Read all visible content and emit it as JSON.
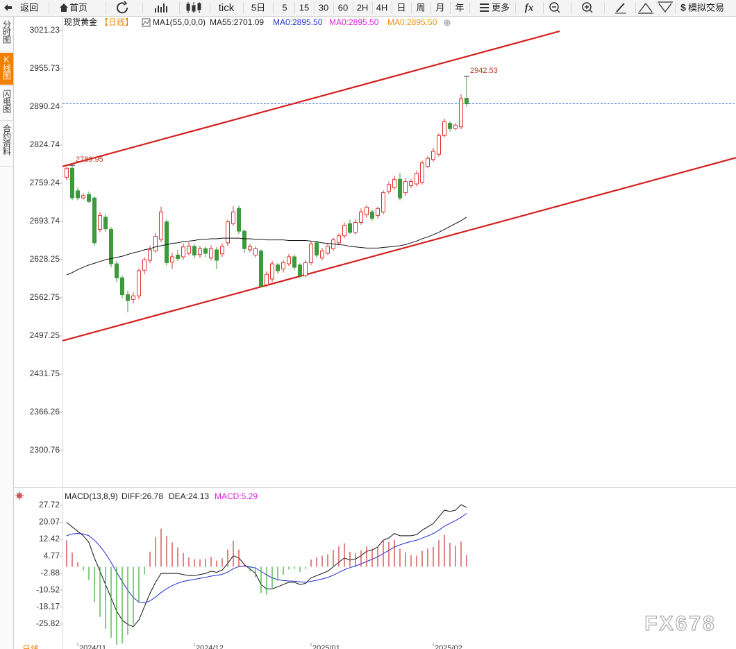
{
  "toolbar": {
    "buttons": [
      "返回",
      "首页",
      "tick",
      "5日",
      "5",
      "15",
      "30",
      "60",
      "2H",
      "4H",
      "日",
      "周",
      "月",
      "年",
      "更多",
      "模拟交易"
    ]
  },
  "sidebar": {
    "tabs": [
      "分时图",
      "K线图",
      "闪电图",
      "合约资料"
    ],
    "active": 1
  },
  "period_tab": "日线",
  "watermark": "FX678",
  "chart_data": [
    {
      "type": "candlestick",
      "title": "现货黄金",
      "legend": [
        {
          "text": "【日线】",
          "color": "#f08000"
        },
        {
          "text": "MA1(55,0,0,0)",
          "color": "#222222"
        },
        {
          "text": "MA55:2701.09",
          "color": "#222222"
        },
        {
          "text": "MA0:2895.50",
          "color": "#2233cc"
        },
        {
          "text": "MA0:2895.50",
          "color": "#dd22dd"
        },
        {
          "text": "MA0:2895.50",
          "color": "#f09010"
        }
      ],
      "categories": [
        null,
        null,
        "2024/11",
        null,
        null,
        null,
        null,
        null,
        null,
        null,
        null,
        null,
        null,
        null,
        null,
        null,
        null,
        null,
        null,
        null,
        null,
        null,
        null,
        "2024/12",
        null,
        null,
        null,
        null,
        null,
        null,
        null,
        null,
        null,
        null,
        null,
        null,
        null,
        null,
        null,
        null,
        null,
        null,
        null,
        null,
        "2025/01",
        null,
        null,
        null,
        null,
        null,
        null,
        null,
        null,
        null,
        null,
        null,
        null,
        null,
        null,
        null,
        null,
        null,
        null,
        null,
        null,
        null,
        "2025/02",
        null,
        null,
        null,
        null,
        null,
        null
      ],
      "open": [
        2769.5,
        2785,
        2746.2,
        2734,
        2740,
        2734,
        2680,
        2701,
        2680,
        2621,
        2597,
        2568,
        2560,
        2566,
        2610,
        2627,
        2643,
        2663,
        2693,
        2624,
        2636,
        2633,
        2639,
        2651,
        2637,
        2647,
        2631,
        2645,
        2638,
        2657,
        2690,
        2716,
        2677,
        2645,
        2636,
        2643,
        2585,
        2595,
        2619,
        2612,
        2621,
        2633,
        2619,
        2601,
        2623,
        2657,
        2631,
        2639,
        2647,
        2657,
        2669,
        2690,
        2675,
        2692,
        2705,
        2710,
        2704,
        2710,
        2745,
        2752,
        2766,
        2743,
        2755,
        2758,
        2761,
        2788,
        2800,
        2809,
        2841,
        2862,
        2853,
        2856,
        2905
      ],
      "high": [
        2787,
        2789.95,
        2752,
        2742,
        2745,
        2737,
        2710,
        2706,
        2684,
        2626,
        2601,
        2575,
        2572,
        2613,
        2632,
        2652,
        2674,
        2719,
        2697,
        2640,
        2645,
        2656,
        2658,
        2655,
        2652,
        2651,
        2653,
        2650,
        2656,
        2697,
        2720,
        2721,
        2680,
        2655,
        2651,
        2646,
        2608,
        2626,
        2622,
        2627,
        2638,
        2637,
        2622,
        2627,
        2660,
        2660,
        2648,
        2655,
        2666,
        2673,
        2692,
        2697,
        2697,
        2716,
        2722,
        2714,
        2719,
        2747,
        2762,
        2772,
        2777,
        2768,
        2766,
        2781,
        2798,
        2806,
        2820,
        2845,
        2870,
        2866,
        2862,
        2912,
        2942.53
      ],
      "low": [
        2765,
        2730,
        2730,
        2731,
        2725,
        2652,
        2675,
        2676,
        2615,
        2590,
        2562,
        2538,
        2553,
        2560,
        2603,
        2622,
        2640,
        2658,
        2618,
        2612,
        2626,
        2628,
        2635,
        2630,
        2631,
        2633,
        2627,
        2612,
        2633,
        2652,
        2686,
        2672,
        2640,
        2641,
        2632,
        2580,
        2581,
        2590,
        2604,
        2606,
        2617,
        2610,
        2597,
        2598,
        2619,
        2631,
        2627,
        2636,
        2643,
        2653,
        2665,
        2672,
        2671,
        2688,
        2700,
        2695,
        2699,
        2706,
        2741,
        2748,
        2730,
        2738,
        2751,
        2754,
        2757,
        2785,
        2796,
        2805,
        2838,
        2848,
        2850,
        2852,
        2890
      ],
      "close": [
        2785,
        2734.3,
        2734.3,
        2738,
        2728,
        2657,
        2704,
        2681,
        2621,
        2597,
        2568,
        2558,
        2566,
        2609,
        2628,
        2645,
        2668,
        2710,
        2623,
        2633,
        2630,
        2650,
        2651,
        2636,
        2647,
        2639,
        2647,
        2627,
        2651,
        2693,
        2710,
        2677,
        2647,
        2651,
        2647,
        2583,
        2603,
        2621,
        2609,
        2623,
        2633,
        2615,
        2601,
        2623,
        2655,
        2636,
        2643,
        2651,
        2662,
        2669,
        2687,
        2675,
        2692,
        2710,
        2718,
        2699,
        2716,
        2743,
        2757,
        2766,
        2734,
        2762,
        2762,
        2776,
        2794,
        2802,
        2814,
        2841,
        2865,
        2853,
        2859,
        2904,
        2895.5
      ],
      "up_color": "#e03030",
      "down_color": "#3c9a3c",
      "series": [
        {
          "name": "MA55",
          "color": "#111111",
          "values": [
            2602,
            2606,
            2611,
            2615,
            2619,
            2622,
            2625,
            2628,
            2630,
            2632,
            2634,
            2637,
            2640,
            2642,
            2645,
            2647,
            2650,
            2652,
            2654,
            2656,
            2657,
            2659,
            2660,
            2661,
            2663,
            2663,
            2664,
            2664,
            2665,
            2665,
            2665,
            2665,
            2664,
            2664,
            2663,
            2663,
            2662,
            2662,
            2662,
            2662,
            2661,
            2661,
            2661,
            2661,
            2660,
            2659,
            2657,
            2656,
            2655,
            2654,
            2653,
            2651,
            2650,
            2649,
            2648,
            2648,
            2648,
            2649,
            2650,
            2651,
            2652,
            2654,
            2657,
            2660,
            2664,
            2667,
            2671,
            2675,
            2680,
            2685,
            2690,
            2695,
            2701.09
          ]
        }
      ],
      "high_marks": [
        1,
        72
      ],
      "trendlines": [
        {
          "color": "#d42020",
          "x": [
            -0.75,
            88.75
          ],
          "y": [
            2788,
            3020
          ]
        },
        {
          "color": "#d42020",
          "x": [
            -0.75,
            120.5
          ],
          "y": [
            2489,
            2803
          ]
        }
      ],
      "price_line": {
        "value": 2895.5,
        "color": "#3377dd"
      },
      "xlim": [
        -0.75,
        120.5
      ],
      "ylim": [
        2240.03,
        3043.8
      ],
      "yticks": [
        3021.23,
        2955.73,
        2890.24,
        2824.74,
        2759.24,
        2693.74,
        2628.25,
        2562.75,
        2497.25,
        2431.75,
        2366.26,
        2300.76
      ]
    },
    {
      "type": "macd",
      "legend": [
        {
          "text": "MACD(13,8,9)",
          "color": "#222222"
        },
        {
          "text": "DIFF:26.78",
          "color": "#222222"
        },
        {
          "text": "DEA:24.13",
          "color": "#222222"
        },
        {
          "text": "MACD:5.29",
          "color": "#dd22dd"
        }
      ],
      "series": [
        {
          "name": "DIFF",
          "color": "#111111",
          "values": [
            20,
            18,
            16,
            14,
            11,
            4,
            -2,
            -8,
            -14,
            -20,
            -24,
            -26,
            -27,
            -24,
            -18,
            -12,
            -7,
            -3,
            -3,
            -3,
            -3,
            -3.5,
            -4,
            -4,
            -3.5,
            -3,
            -2,
            -2.5,
            -1.5,
            1.5,
            5,
            4,
            1,
            -1,
            -3,
            -8,
            -10,
            -10,
            -9,
            -8,
            -7,
            -7,
            -8,
            -7.5,
            -5,
            -4,
            -3,
            -2,
            0,
            2,
            4,
            3,
            3.5,
            5,
            7,
            7.5,
            9,
            12,
            13,
            15,
            14,
            14,
            14,
            14.5,
            16.5,
            18,
            19.5,
            22.5,
            25.5,
            25,
            25.5,
            28,
            26.78
          ]
        },
        {
          "name": "DEA",
          "color": "#1a2bcc",
          "values": [
            14,
            14.8,
            15,
            14.8,
            14,
            12,
            9.3,
            6,
            2,
            -2.4,
            -6.7,
            -10.6,
            -13.9,
            -15.9,
            -16.3,
            -15.4,
            -13.7,
            -11.6,
            -9.9,
            -8.5,
            -7.4,
            -6.6,
            -6.1,
            -5.7,
            -5.2,
            -4.8,
            -4.2,
            -3.9,
            -3.4,
            -2.4,
            -0.9,
            0.1,
            0.3,
            0,
            -0.6,
            -2.1,
            -3.7,
            -5,
            -5.8,
            -6.2,
            -6.4,
            -6.5,
            -6.8,
            -7,
            -6.6,
            -6.1,
            -5.5,
            -4.8,
            -3.8,
            -2.6,
            -1.3,
            -0.4,
            0.4,
            1.3,
            2.4,
            3.4,
            4.5,
            6,
            7.4,
            8.9,
            9.9,
            10.7,
            11.4,
            12,
            12.9,
            13.9,
            15,
            16.5,
            18.3,
            19.6,
            20.8,
            22.3,
            24.13
          ]
        },
        {
          "name": "MACD",
          "type": "histogram",
          "up_color": "#cc3333",
          "down_color": "#33aa33",
          "values": [
            12,
            6.4,
            2,
            -1.6,
            -6,
            -16,
            -22.6,
            -28,
            -32,
            -35.2,
            -34.6,
            -30.8,
            -26.2,
            -16.2,
            -3.4,
            6.8,
            13.4,
            17.2,
            13.8,
            11,
            8.8,
            6.2,
            4.2,
            3.4,
            3.4,
            3.6,
            4.4,
            2.8,
            3.8,
            7.8,
            11.8,
            7.8,
            1.4,
            -2,
            -4.8,
            -11.8,
            -12.6,
            -10,
            -6.4,
            -3.6,
            -1.2,
            -1,
            -2.4,
            -1,
            3.2,
            4.2,
            5,
            5.6,
            7.6,
            9.2,
            10.6,
            6.8,
            6.2,
            7.4,
            9.2,
            8.2,
            9,
            12,
            11.2,
            12.2,
            8.2,
            6.6,
            5.2,
            5,
            7.2,
            8.2,
            9,
            12,
            14.4,
            10.8,
            9.4,
            11.4,
            5.29
          ]
        }
      ],
      "xlim": [
        -0.75,
        120.5
      ],
      "ylim": [
        -35.53,
        34.3
      ],
      "yticks": [
        27.72,
        20.07,
        12.42,
        4.77,
        -2.88,
        -10.52,
        -18.17,
        -25.82
      ]
    }
  ]
}
